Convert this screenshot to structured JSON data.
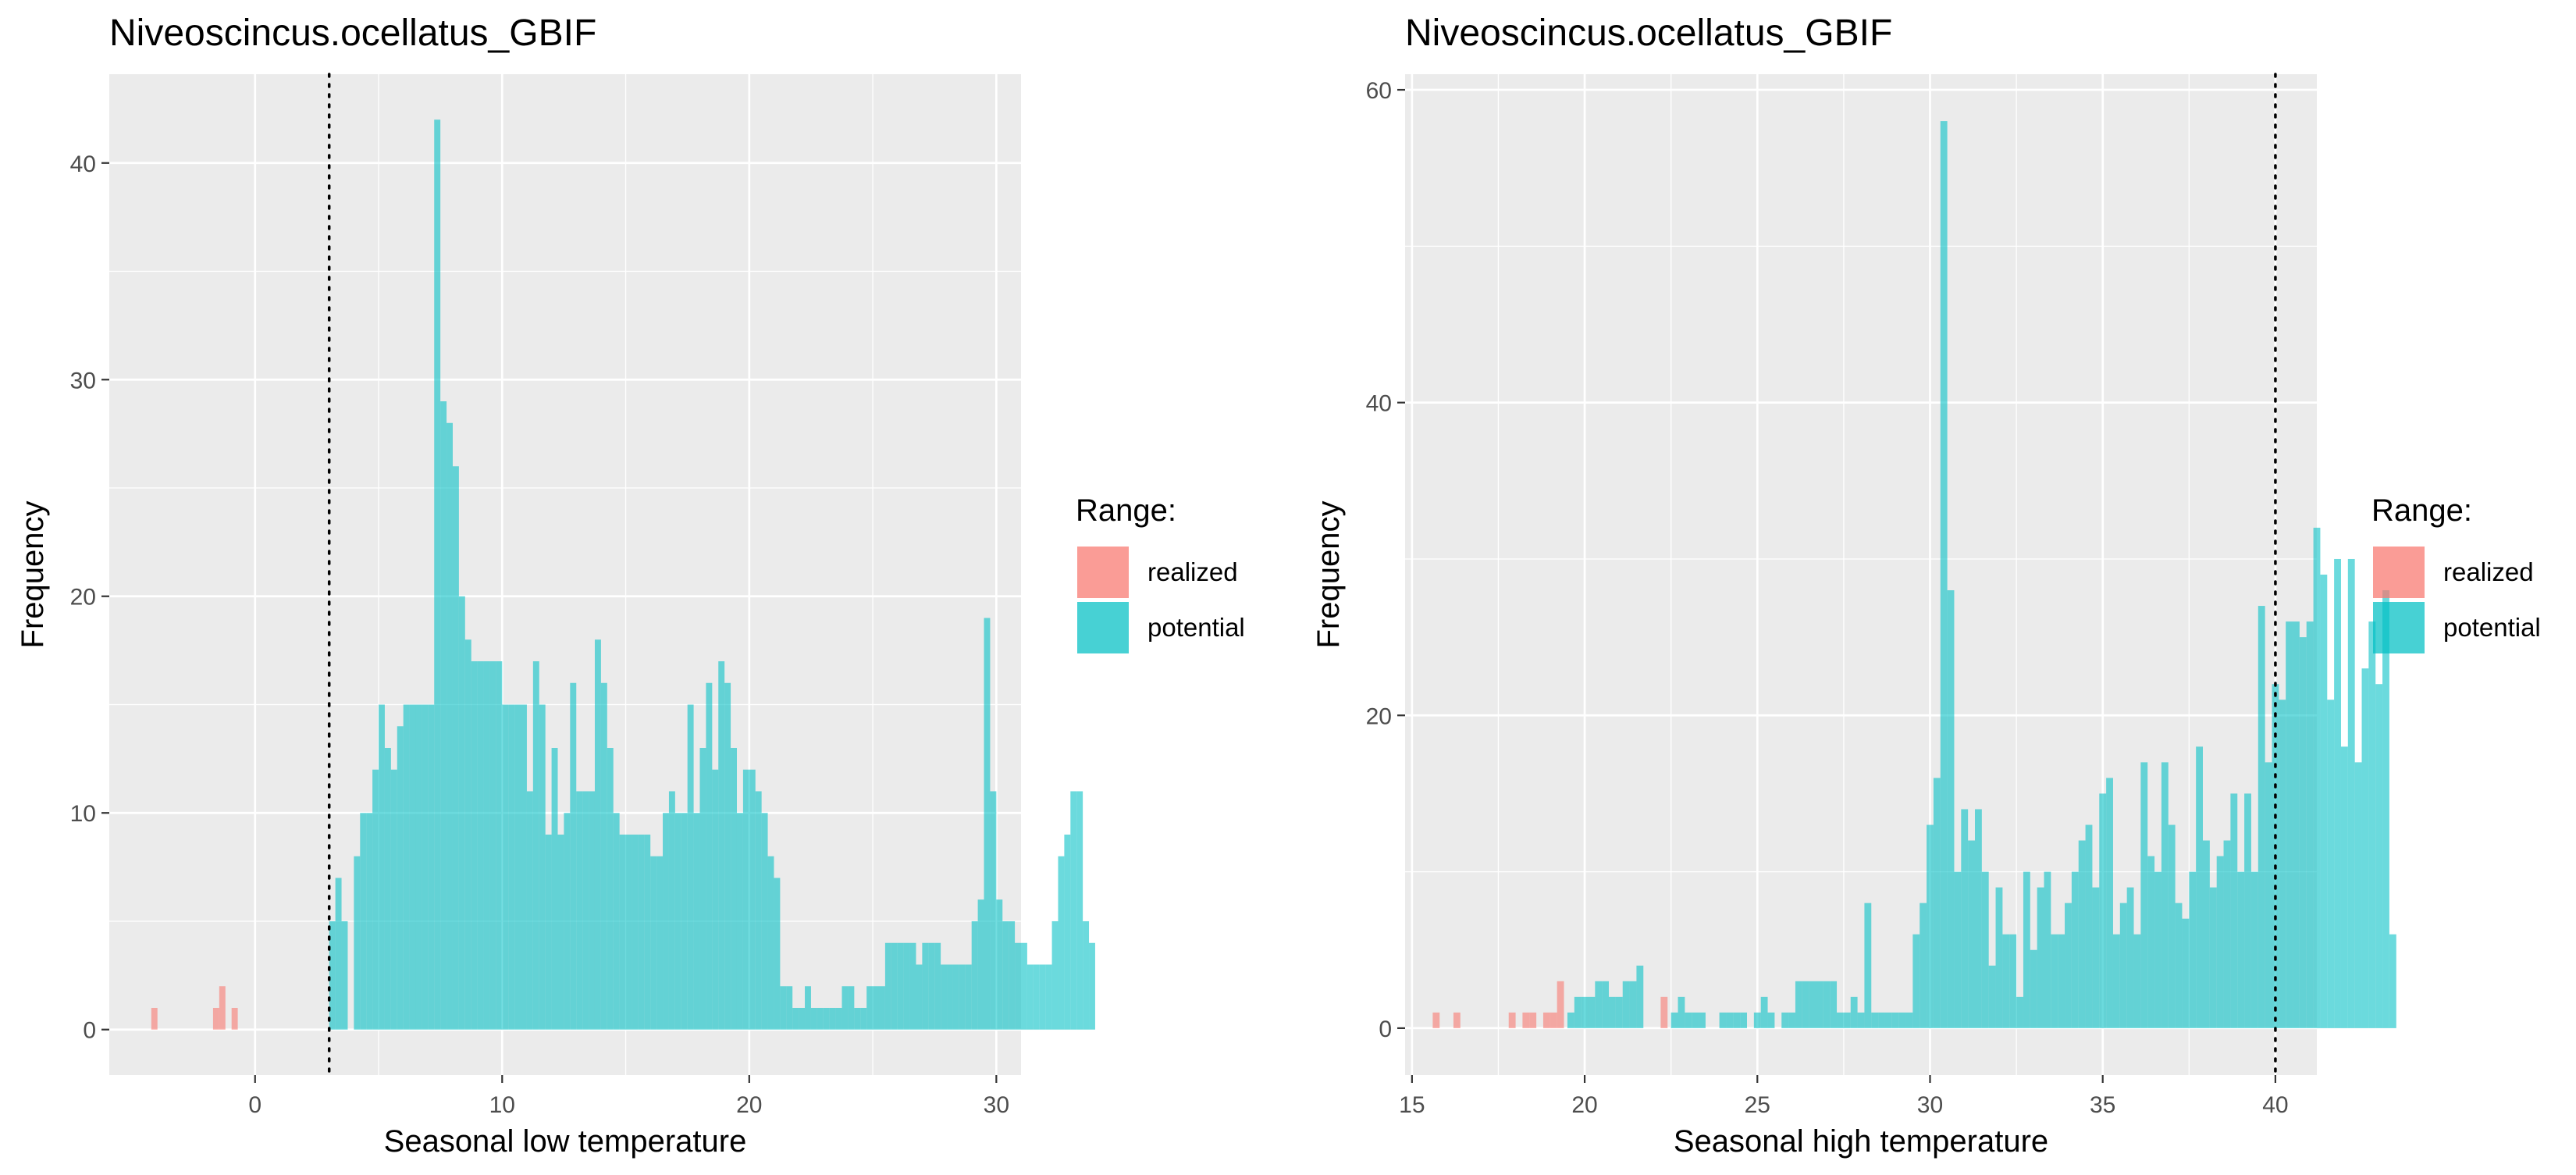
{
  "chart_data": [
    {
      "type": "histogram",
      "title": "Niveoscincus.ocellatus_GBIF",
      "xlabel": "Seasonal low temperature",
      "ylabel": "Frequency",
      "xlim": [
        -5.9,
        31.0
      ],
      "ylim": [
        -2.1,
        44.1
      ],
      "xticks": [
        0,
        10,
        20,
        30
      ],
      "yticks": [
        0,
        10,
        20,
        30,
        40
      ],
      "legend_title": "Range:",
      "legend_position": "right",
      "vline": 3.0,
      "series": [
        {
          "name": "realized",
          "color": "#F8766D",
          "bin_start": -4.2,
          "bin_width": 0.25,
          "values": [
            1,
            0,
            0,
            0,
            0,
            0,
            0,
            0,
            0,
            0,
            1,
            2,
            0,
            1
          ]
        },
        {
          "name": "potential",
          "color": "#00BFC4",
          "bin_start": 3.0,
          "bin_width": 0.25,
          "values": [
            5,
            7,
            5,
            0,
            8,
            10,
            10,
            12,
            15,
            13,
            12,
            14,
            15,
            15,
            15,
            15,
            15,
            42,
            29,
            28,
            26,
            20,
            18,
            17,
            17,
            17,
            17,
            17,
            15,
            15,
            15,
            15,
            11,
            17,
            15,
            9,
            13,
            9,
            10,
            16,
            11,
            11,
            11,
            18,
            16,
            13,
            10,
            9,
            9,
            9,
            9,
            9,
            8,
            8,
            10,
            11,
            10,
            10,
            15,
            10,
            13,
            16,
            12,
            17,
            16,
            13,
            10,
            12,
            12,
            11,
            10,
            8,
            7,
            2,
            2,
            1,
            1,
            2,
            1,
            1,
            1,
            1,
            1,
            2,
            2,
            1,
            1,
            2,
            2,
            2,
            4,
            4,
            4,
            4,
            4,
            3,
            4,
            4,
            4,
            3,
            3,
            3,
            3,
            3,
            5,
            6,
            19,
            11,
            6,
            5,
            5,
            4,
            4,
            3,
            3,
            3,
            3,
            5,
            8,
            9,
            11,
            11,
            5,
            4
          ]
        }
      ]
    },
    {
      "type": "histogram",
      "title": "Niveoscincus.ocellatus_GBIF",
      "xlabel": "Seasonal high temperature",
      "ylabel": "Frequency",
      "xlim": [
        14.8,
        41.2
      ],
      "ylim": [
        -3.0,
        61.0
      ],
      "xticks": [
        15,
        20,
        25,
        30,
        35,
        40
      ],
      "yticks": [
        0,
        20,
        40,
        60
      ],
      "legend_title": "Range:",
      "legend_position": "right",
      "vline": 40.0,
      "series": [
        {
          "name": "realized",
          "color": "#F8766D",
          "bin_start": 15.6,
          "bin_width": 0.2,
          "values": [
            1,
            0,
            0,
            1,
            0,
            0,
            0,
            0,
            0,
            0,
            0,
            1,
            0,
            1,
            1,
            0,
            1,
            1,
            3,
            0,
            0,
            0,
            0,
            0,
            0,
            0,
            0,
            0,
            0,
            0,
            0,
            0,
            0,
            2
          ]
        },
        {
          "name": "potential",
          "color": "#00BFC4",
          "bin_start": 19.5,
          "bin_width": 0.2,
          "values": [
            1,
            2,
            2,
            2,
            3,
            3,
            2,
            2,
            3,
            3,
            4,
            0,
            0,
            0,
            0,
            1,
            2,
            1,
            1,
            1,
            0,
            0,
            1,
            1,
            1,
            1,
            0,
            1,
            2,
            1,
            0,
            1,
            1,
            3,
            3,
            3,
            3,
            3,
            3,
            1,
            1,
            2,
            1,
            8,
            1,
            1,
            1,
            1,
            1,
            1,
            6,
            8,
            13,
            16,
            58,
            28,
            10,
            14,
            12,
            14,
            10,
            4,
            9,
            6,
            6,
            2,
            10,
            5,
            9,
            10,
            6,
            6,
            8,
            10,
            12,
            13,
            9,
            15,
            16,
            6,
            8,
            9,
            6,
            17,
            11,
            10,
            17,
            13,
            8,
            7,
            10,
            18,
            12,
            9,
            11,
            12,
            15,
            10,
            15,
            10,
            27,
            17,
            22,
            21,
            26,
            26,
            25,
            26,
            32,
            29,
            21,
            30,
            18,
            30,
            17,
            23,
            26,
            22,
            28,
            6
          ]
        }
      ]
    }
  ]
}
